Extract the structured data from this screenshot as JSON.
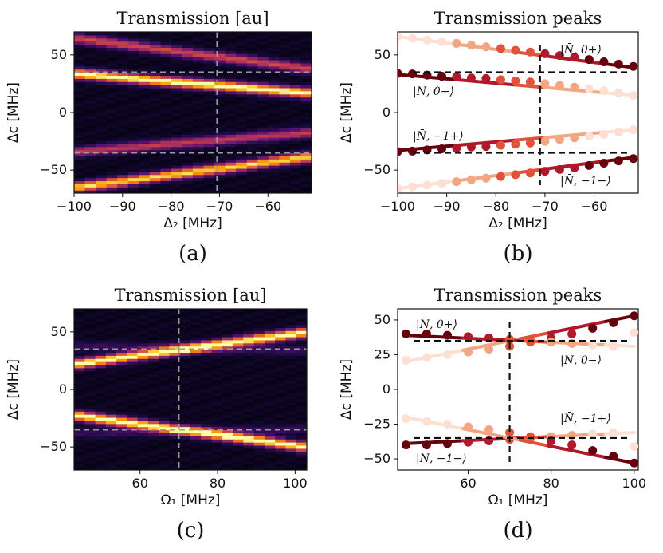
{
  "chart_data": [
    {
      "id": "a",
      "type": "heatmap",
      "panel_label": "(a)",
      "title": "Transmission [au]",
      "xlabel": "Δ₂ [MHz]",
      "ylabel": "Δc [MHz]",
      "xlim": [
        -100,
        -51
      ],
      "ylim": [
        -70,
        70
      ],
      "xticks": [
        -100,
        -90,
        -80,
        -70,
        -60
      ],
      "yticks": [
        50,
        0,
        -50
      ],
      "xtick_labels": [
        "−100",
        "−90",
        "−80",
        "−70",
        "−60"
      ],
      "ytick_labels": [
        "50",
        "0",
        "−50"
      ],
      "vline": -70.5,
      "hlines": [
        35,
        -35
      ],
      "branches": [
        {
          "x": [
            -100,
            -51
          ],
          "y": [
            65,
            38
          ],
          "strength": 0.55
        },
        {
          "x": [
            -100,
            -51
          ],
          "y": [
            34,
            17
          ],
          "strength": 1.0
        },
        {
          "x": [
            -100,
            -51
          ],
          "y": [
            -34,
            -17
          ],
          "strength": 0.5
        },
        {
          "x": [
            -100,
            -51
          ],
          "y": [
            -65,
            -38
          ],
          "strength": 0.9
        }
      ]
    },
    {
      "id": "b",
      "type": "scatter",
      "panel_label": "(b)",
      "title": "Transmission peaks",
      "xlabel": "Δ₂ [MHz]",
      "ylabel": "Δc [MHz]",
      "xlim": [
        -100,
        -51
      ],
      "ylim": [
        -70,
        70
      ],
      "xticks": [
        -100,
        -90,
        -80,
        -70,
        -60
      ],
      "yticks": [
        50,
        0,
        -50
      ],
      "xtick_labels": [
        "−100",
        "−90",
        "−80",
        "−70",
        "−60"
      ],
      "ytick_labels": [
        "50",
        "0",
        "−50"
      ],
      "vline": -71,
      "hlines": [
        35,
        -35
      ],
      "annotations": [
        "|N̄, 0+⟩",
        "|N̄, 0−⟩",
        "|N̄, −1+⟩",
        "|N̄, −1−⟩"
      ],
      "series": [
        {
          "name": "upper-outer",
          "x": [
            -100,
            -97,
            -94,
            -91,
            -88,
            -85,
            -82,
            -79,
            -76,
            -73,
            -70,
            -67,
            -64,
            -61,
            -58,
            -55,
            -52
          ],
          "y": [
            66,
            64.5,
            63,
            61.5,
            60,
            58.5,
            57,
            55.5,
            54,
            52.5,
            51,
            49.5,
            48,
            46,
            44,
            42,
            40
          ],
          "line": [
            [
              -100,
              66
            ],
            [
              -52,
              39
            ]
          ]
        },
        {
          "name": "upper-inner",
          "x": [
            -100,
            -97,
            -94,
            -91,
            -88,
            -85,
            -82,
            -79,
            -76,
            -73,
            -70,
            -67,
            -64,
            -61,
            -58,
            -55,
            -52
          ],
          "y": [
            34,
            33.5,
            32.5,
            31.5,
            31,
            30,
            29.5,
            28.5,
            27.5,
            26.5,
            25,
            23.5,
            22,
            20.5,
            19,
            17,
            15
          ],
          "line": [
            [
              -100,
              33
            ],
            [
              -52,
              15
            ]
          ]
        },
        {
          "name": "lower-inner",
          "x": [
            -100,
            -97,
            -94,
            -91,
            -88,
            -85,
            -82,
            -79,
            -76,
            -73,
            -70,
            -67,
            -64,
            -61,
            -58,
            -55,
            -52
          ],
          "y": [
            -34,
            -33.5,
            -32.5,
            -31.5,
            -31,
            -30,
            -29.5,
            -28.5,
            -27.5,
            -26.5,
            -25,
            -23.5,
            -22,
            -20.5,
            -19,
            -17,
            -15
          ],
          "line": [
            [
              -100,
              -33
            ],
            [
              -52,
              -15
            ]
          ]
        },
        {
          "name": "lower-outer",
          "x": [
            -100,
            -97,
            -94,
            -91,
            -88,
            -85,
            -82,
            -79,
            -76,
            -73,
            -70,
            -67,
            -64,
            -61,
            -58,
            -55,
            -52
          ],
          "y": [
            -66,
            -64.5,
            -63,
            -61.5,
            -60,
            -58.5,
            -57,
            -55.5,
            -54,
            -52.5,
            -51,
            -49.5,
            -48,
            -46,
            -44,
            -42,
            -40
          ],
          "line": [
            [
              -100,
              -66
            ],
            [
              -52,
              -39
            ]
          ]
        }
      ]
    },
    {
      "id": "c",
      "type": "heatmap",
      "panel_label": "(c)",
      "title": "Transmission [au]",
      "xlabel": "Ω₁ [MHz]",
      "ylabel": "Δc [MHz]",
      "xlim": [
        43,
        103
      ],
      "ylim": [
        -70,
        70
      ],
      "xticks": [
        60,
        80,
        100
      ],
      "yticks": [
        50,
        0,
        -50
      ],
      "xtick_labels": [
        "60",
        "80",
        "100"
      ],
      "ytick_labels": [
        "50",
        "0",
        "−50"
      ],
      "vline": 70,
      "hlines": [
        35,
        -35
      ],
      "branches": [
        {
          "x": [
            43,
            103
          ],
          "y": [
            22,
            50
          ],
          "strength": 1.0
        },
        {
          "x": [
            43,
            103
          ],
          "y": [
            -22,
            -50
          ],
          "strength": 1.0
        },
        {
          "x": [
            43,
            103
          ],
          "y": [
            38,
            34
          ],
          "strength": 0.15
        },
        {
          "x": [
            43,
            103
          ],
          "y": [
            -38,
            -34
          ],
          "strength": 0.15
        }
      ]
    },
    {
      "id": "d",
      "type": "scatter",
      "panel_label": "(d)",
      "title": "Transmission peaks",
      "xlabel": "Ω₁ [MHz]",
      "ylabel": "Δc [MHz]",
      "xlim": [
        43,
        101
      ],
      "ylim": [
        -58,
        58
      ],
      "xticks": [
        60,
        80,
        100
      ],
      "yticks": [
        50,
        25,
        0,
        -25,
        -50
      ],
      "xtick_labels": [
        "60",
        "80",
        "100"
      ],
      "ytick_labels": [
        "50",
        "25",
        "0",
        "−25",
        "−50"
      ],
      "vline": 70,
      "hlines": [
        35,
        -35
      ],
      "annotations": [
        "|N̄, 0+⟩",
        "|N̄, 0−⟩",
        "|N̄, −1+⟩",
        "|N̄, −1−⟩"
      ],
      "series": [
        {
          "name": "upper-outer",
          "x": [
            45,
            50,
            55,
            60,
            65,
            70,
            75,
            80,
            85,
            90,
            95,
            100
          ],
          "y": [
            21,
            23,
            25,
            27,
            29,
            31,
            34,
            37,
            40,
            44,
            48,
            53
          ],
          "line": [
            [
              45,
              20
            ],
            [
              100,
              53
            ]
          ]
        },
        {
          "name": "upper-inner",
          "x": [
            45,
            50,
            55,
            60,
            65,
            70,
            75,
            80,
            85,
            90,
            95,
            100
          ],
          "y": [
            40,
            40,
            39,
            38,
            37,
            36,
            35,
            34,
            33,
            32,
            31,
            41
          ],
          "line": [
            [
              45,
              39
            ],
            [
              100,
              31
            ]
          ]
        },
        {
          "name": "lower-inner",
          "x": [
            45,
            50,
            55,
            60,
            65,
            70,
            75,
            80,
            85,
            90,
            95,
            100
          ],
          "y": [
            -40,
            -40,
            -39,
            -38,
            -37,
            -36,
            -35,
            -34,
            -33,
            -32,
            -31,
            -41
          ],
          "line": [
            [
              45,
              -39
            ],
            [
              100,
              -31
            ]
          ]
        },
        {
          "name": "lower-outer",
          "x": [
            45,
            50,
            55,
            60,
            65,
            70,
            75,
            80,
            85,
            90,
            95,
            100
          ],
          "y": [
            -21,
            -23,
            -25,
            -27,
            -29,
            -31,
            -34,
            -37,
            -40,
            -44,
            -48,
            -53
          ],
          "line": [
            [
              45,
              -20
            ],
            [
              100,
              -53
            ]
          ]
        }
      ]
    }
  ]
}
